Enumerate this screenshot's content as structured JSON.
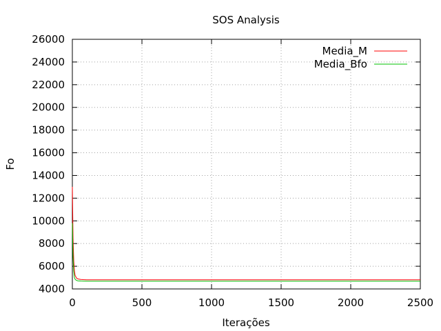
{
  "chart_data": {
    "type": "line",
    "title": "SOS Analysis",
    "xlabel": "Iterações",
    "ylabel": "Fo",
    "xlim": [
      0,
      2500
    ],
    "ylim": [
      4000,
      26000
    ],
    "x_ticks": [
      0,
      500,
      1000,
      1500,
      2000,
      2500
    ],
    "y_ticks": [
      4000,
      6000,
      8000,
      10000,
      12000,
      14000,
      16000,
      18000,
      20000,
      22000,
      24000,
      26000
    ],
    "grid": true,
    "legend_position": "top-right",
    "series": [
      {
        "name": "Media_M",
        "color": "#ff0000",
        "x": [
          0,
          5,
          10,
          15,
          20,
          30,
          40,
          60,
          80,
          100,
          150,
          200,
          300,
          500,
          1000,
          1500,
          2000,
          2500
        ],
        "y": [
          13000,
          8500,
          6500,
          5600,
          5200,
          4950,
          4880,
          4840,
          4820,
          4810,
          4805,
          4800,
          4800,
          4800,
          4800,
          4800,
          4800,
          4800
        ]
      },
      {
        "name": "Media_Bfo",
        "color": "#00c000",
        "x": [
          0,
          5,
          10,
          15,
          20,
          30,
          40,
          60,
          80,
          100,
          150,
          200,
          300,
          500,
          1000,
          1500,
          2000,
          2500
        ],
        "y": [
          9800,
          6800,
          5500,
          5000,
          4850,
          4750,
          4720,
          4700,
          4690,
          4685,
          4680,
          4680,
          4680,
          4680,
          4680,
          4680,
          4680,
          4680
        ]
      }
    ]
  }
}
